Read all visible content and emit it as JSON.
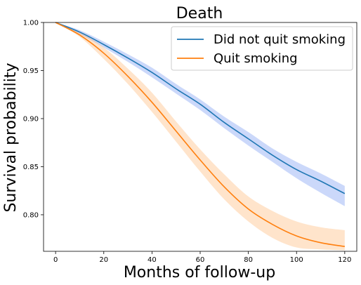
{
  "chart_data": {
    "type": "line",
    "title": "Death",
    "xlabel": "Months of follow-up",
    "ylabel": "Survival probability",
    "xlim": [
      -5,
      125
    ],
    "ylim": [
      0.762,
      1.0
    ],
    "xticks": [
      0,
      20,
      40,
      60,
      80,
      100,
      120
    ],
    "xtick_labels": [
      "0",
      "20",
      "40",
      "60",
      "80",
      "100",
      "120"
    ],
    "yticks": [
      0.8,
      0.85,
      0.9,
      0.95,
      1.0
    ],
    "ytick_labels": [
      "0.80",
      "0.85",
      "0.90",
      "0.95",
      "1.00"
    ],
    "grid": false,
    "legend_position": "top-right",
    "x": [
      0,
      10,
      20,
      30,
      40,
      50,
      60,
      70,
      80,
      90,
      100,
      110,
      120
    ],
    "series": [
      {
        "name": "Did not quit smoking",
        "color": "#1f77b4",
        "band_color": "#6b8ff0",
        "values": [
          1.0,
          0.99,
          0.977,
          0.963,
          0.948,
          0.931,
          0.915,
          0.896,
          0.879,
          0.862,
          0.847,
          0.835,
          0.822
        ],
        "lower": [
          1.0,
          0.988,
          0.974,
          0.959,
          0.943,
          0.926,
          0.909,
          0.89,
          0.872,
          0.855,
          0.838,
          0.823,
          0.809
        ],
        "upper": [
          1.0,
          0.992,
          0.98,
          0.967,
          0.953,
          0.936,
          0.92,
          0.902,
          0.886,
          0.869,
          0.855,
          0.843,
          0.83
        ]
      },
      {
        "name": "Quit smoking",
        "color": "#ff7f0e",
        "band_color": "#ffb36b",
        "values": [
          1.0,
          0.987,
          0.968,
          0.944,
          0.917,
          0.887,
          0.857,
          0.829,
          0.806,
          0.79,
          0.778,
          0.771,
          0.767
        ],
        "lower": [
          1.0,
          0.985,
          0.962,
          0.936,
          0.907,
          0.876,
          0.845,
          0.816,
          0.793,
          0.776,
          0.766,
          0.764,
          0.763
        ],
        "upper": [
          1.0,
          0.99,
          0.974,
          0.952,
          0.927,
          0.897,
          0.868,
          0.842,
          0.819,
          0.804,
          0.793,
          0.787,
          0.784
        ]
      }
    ]
  }
}
